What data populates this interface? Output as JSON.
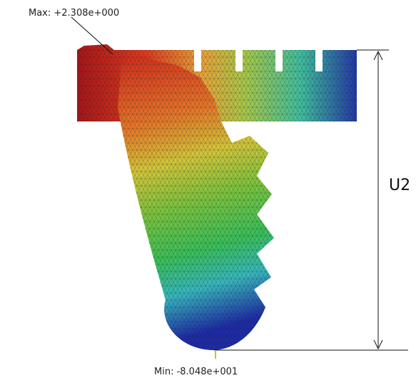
{
  "annotations": {
    "max": "Max: +2.308e+000",
    "min": "Min: -8.048e+001"
  },
  "dimension": {
    "label": "U2"
  }
}
